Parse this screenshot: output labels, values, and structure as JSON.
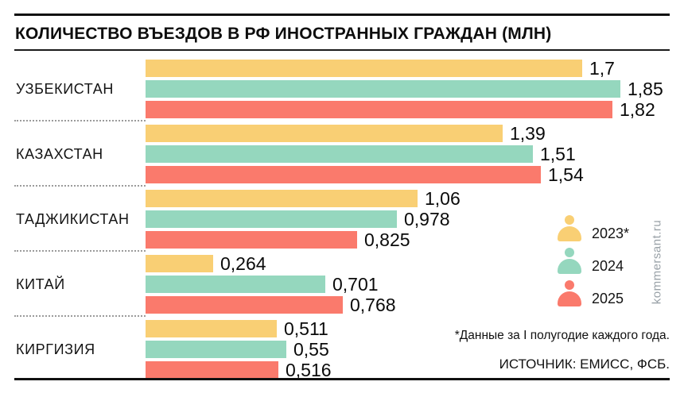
{
  "header": {
    "title": "КОЛИЧЕСТВО ВЪЕЗДОВ В РФ ИНОСТРАННЫХ ГРАЖДАН (МЛН)"
  },
  "chart_data": {
    "type": "bar",
    "orientation": "horizontal",
    "title": "КОЛИЧЕСТВО ВЪЕЗДОВ В РФ ИНОСТРАННЫХ ГРАЖДАН (МЛН)",
    "unit": "млн",
    "xlim": [
      0,
      2.04
    ],
    "grid": false,
    "legend_position": "right-middle",
    "categories": [
      "УЗБЕКИСТАН",
      "КАЗАХСТАН",
      "ТАДЖИКИСТАН",
      "КИТАЙ",
      "КИРГИЗИЯ"
    ],
    "series": [
      {
        "name": "2023*",
        "color": "#F9CF74",
        "values": [
          1.7,
          1.39,
          1.06,
          0.264,
          0.511
        ],
        "labels": [
          "1,7",
          "1,39",
          "1,06",
          "0,264",
          "0,511"
        ]
      },
      {
        "name": "2024",
        "color": "#95D7BE",
        "values": [
          1.85,
          1.51,
          0.978,
          0.701,
          0.55
        ],
        "labels": [
          "1,85",
          "1,51",
          "0,978",
          "0,701",
          "0,55"
        ]
      },
      {
        "name": "2025",
        "color": "#FA7A6C",
        "values": [
          1.82,
          1.54,
          0.825,
          0.768,
          0.516
        ],
        "labels": [
          "1,82",
          "1,54",
          "0,825",
          "0,768",
          "0,516"
        ]
      }
    ]
  },
  "legend": {
    "items": [
      {
        "label": "2023*",
        "color": "#F9CF74"
      },
      {
        "label": "2024",
        "color": "#95D7BE"
      },
      {
        "label": "2025",
        "color": "#FA7A6C"
      }
    ]
  },
  "watermark": {
    "text": "kommersant.ru"
  },
  "footer": {
    "footnote": "*Данные за I полугодие каждого года.",
    "source": "ИСТОЧНИК: ЕМИСС, ФСБ."
  },
  "colors": {
    "series_2023": "#F9CF74",
    "series_2024": "#95D7BE",
    "series_2025": "#FA7A6C",
    "rule": "#111111",
    "separator_dots": "#9B9B9B",
    "watermark": "#99A1A7"
  }
}
